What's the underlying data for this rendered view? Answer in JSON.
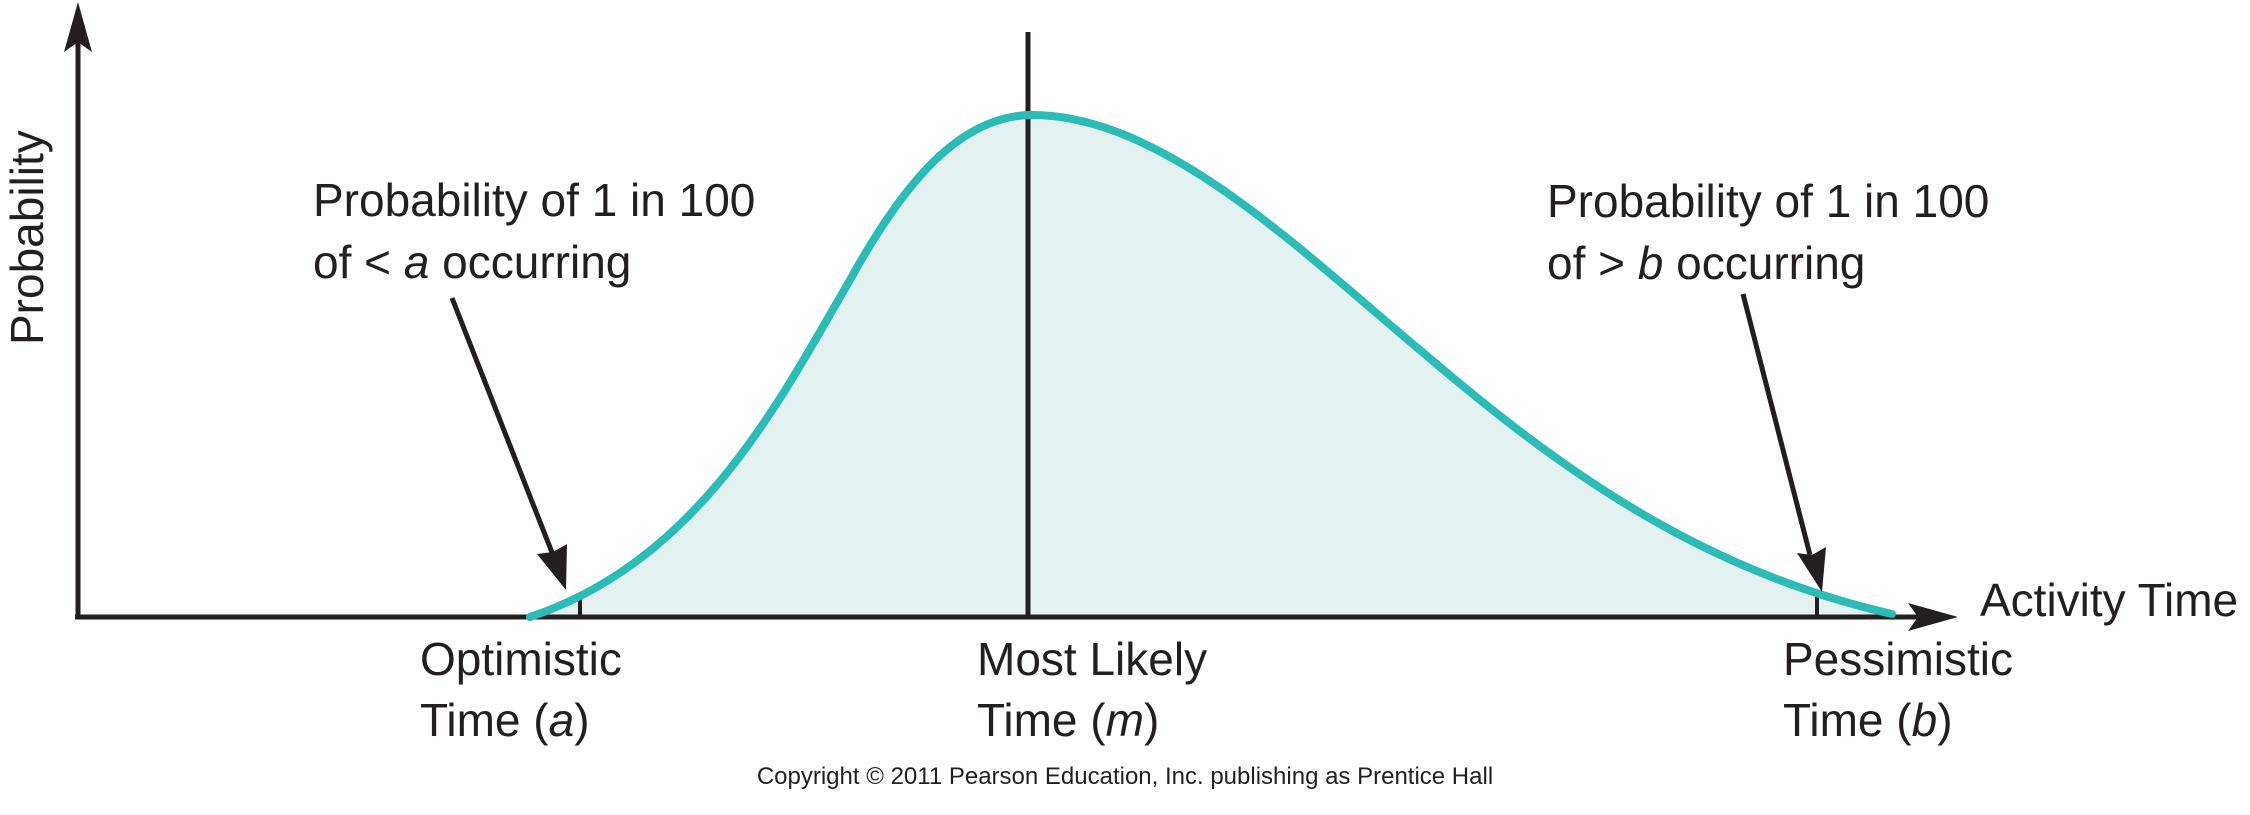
{
  "y_axis_label": "Probability",
  "x_axis_label": "Activity Time",
  "callouts": {
    "left": {
      "line1": "Probability of 1 in 100",
      "line2_pre": "of < ",
      "line2_var": "a",
      "line2_post": " occurring"
    },
    "right": {
      "line1": "Probability of 1 in 100",
      "line2_pre": "of > ",
      "line2_var": "b",
      "line2_post": " occurring"
    }
  },
  "ticks": {
    "optimistic": {
      "line1": "Optimistic",
      "line2_pre": "Time (",
      "var": "a",
      "line2_post": ")"
    },
    "most_likely": {
      "line1": "Most Likely",
      "line2_pre": "Time (",
      "var": "m",
      "line2_post": ")"
    },
    "pessimistic": {
      "line1": "Pessimistic",
      "line2_pre": "Time (",
      "var": "b",
      "line2_post": ")"
    }
  },
  "copyright": "Copyright © 2011 Pearson Education, Inc. publishing as Prentice Hall",
  "colors": {
    "curve": "#2bbcb5",
    "fill": "#e3f2f1",
    "axis": "#231f20"
  }
}
